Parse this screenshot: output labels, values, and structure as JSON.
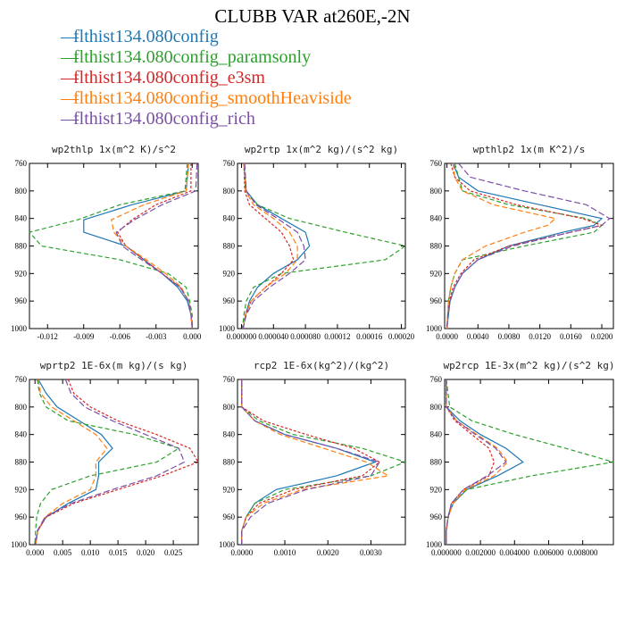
{
  "figure_title": "CLUBB VAR at260E,-2N",
  "legend": [
    {
      "label": "flthist134.080config",
      "color": "#1f77b4"
    },
    {
      "label": "flthist134.080config_paramsonly",
      "color": "#2ca02c"
    },
    {
      "label": "flthist134.080config_e3sm",
      "color": "#d62728"
    },
    {
      "label": "flthist134.080config_smoothHeaviside",
      "color": "#ff7f0e"
    },
    {
      "label": "flthist134.080config_rich",
      "color": "#7b4fa6"
    }
  ],
  "chart_data": [
    {
      "type": "line",
      "title": "wp2thlp  1x(m^2 K)/s^2",
      "xlim": [
        -0.0135,
        0.0005
      ],
      "ylim": [
        760,
        1000
      ],
      "y_inverted": true,
      "xticks": [
        "-0.012",
        "-0.009",
        "-0.006",
        "-0.003",
        "0.000"
      ],
      "xtick_values": [
        -0.012,
        -0.009,
        -0.006,
        -0.003,
        0.0
      ],
      "yticks": [
        "760",
        "800",
        "840",
        "880",
        "920",
        "960",
        "1000"
      ],
      "y": [
        760,
        800,
        820,
        842,
        860,
        880,
        900,
        920,
        940,
        960,
        980,
        1000
      ],
      "series": [
        {
          "color": "#1f77b4",
          "x": [
            -0.0003,
            -0.0005,
            -0.005,
            -0.009,
            -0.009,
            -0.0055,
            -0.004,
            -0.0025,
            -0.0012,
            -0.0004,
            -0.0001,
            0.0
          ]
        },
        {
          "color": "#2ca02c",
          "x": [
            -0.0004,
            -0.0006,
            -0.006,
            -0.0095,
            -0.0135,
            -0.0125,
            -0.006,
            -0.002,
            -0.0005,
            -0.0002,
            0.0,
            0.0
          ]
        },
        {
          "color": "#d62728",
          "x": [
            -0.0001,
            -0.0001,
            -0.003,
            -0.005,
            -0.0062,
            -0.0055,
            -0.004,
            -0.0025,
            -0.001,
            -0.0003,
            -0.0001,
            0.0
          ]
        },
        {
          "color": "#ff7f0e",
          "x": [
            -0.0003,
            -0.0005,
            -0.004,
            -0.0067,
            -0.0065,
            -0.0055,
            -0.0038,
            -0.0022,
            -0.0009,
            -0.0003,
            -0.0001,
            0.0
          ]
        },
        {
          "color": "#7b4fa6",
          "x": [
            0.0004,
            0.0003,
            -0.0025,
            -0.0048,
            -0.0063,
            -0.0058,
            -0.0042,
            -0.0025,
            -0.001,
            -0.0003,
            -0.0001,
            0.0
          ]
        }
      ]
    },
    {
      "type": "line",
      "title": "wp2rtp  1x(m^2 kg)/(s^2 kg)",
      "xlim": [
        -5e-06,
        0.000205
      ],
      "ylim": [
        760,
        1000
      ],
      "y_inverted": true,
      "xticks": [
        "0.000000",
        "0.000040",
        "0.000080",
        "0.00012",
        "0.00016",
        "0.00020"
      ],
      "xtick_values": [
        0.0,
        4e-05,
        8e-05,
        0.00012,
        0.00016,
        0.0002
      ],
      "yticks": [
        "760",
        "800",
        "840",
        "880",
        "920",
        "960",
        "1000"
      ],
      "y": [
        760,
        800,
        820,
        840,
        860,
        880,
        900,
        920,
        940,
        960,
        980,
        1000
      ],
      "series": [
        {
          "color": "#1f77b4",
          "x": [
            3e-06,
            6e-06,
            2e-05,
            5e-05,
            8e-05,
            8.5e-05,
            7e-05,
            4e-05,
            2e-05,
            1e-05,
            5e-06,
            2e-06
          ]
        },
        {
          "color": "#2ca02c",
          "x": [
            3e-06,
            5e-06,
            2e-05,
            6e-05,
            0.00013,
            0.000205,
            0.00018,
            5e-05,
            1.5e-05,
            6e-06,
            3e-06,
            1e-06
          ]
        },
        {
          "color": "#d62728",
          "x": [
            3e-06,
            4e-06,
            1e-05,
            3e-05,
            5e-05,
            6e-05,
            6.5e-05,
            5e-05,
            3e-05,
            1.2e-05,
            5e-06,
            2e-06
          ]
        },
        {
          "color": "#ff7f0e",
          "x": [
            3e-06,
            5e-06,
            1.5e-05,
            4e-05,
            6e-05,
            7e-05,
            7e-05,
            5.5e-05,
            3e-05,
            1.2e-05,
            5e-06,
            2e-06
          ]
        },
        {
          "color": "#7b4fa6",
          "x": [
            4e-06,
            6e-06,
            1.8e-05,
            4.5e-05,
            7e-05,
            7.8e-05,
            8e-05,
            6e-05,
            3.5e-05,
            1.5e-05,
            6e-06,
            2e-06
          ]
        }
      ]
    },
    {
      "type": "line",
      "title": "wpthlp2  1x(m K^2)/s",
      "xlim": [
        -0.0003,
        0.0215
      ],
      "ylim": [
        760,
        1000
      ],
      "y_inverted": true,
      "xticks": [
        "0.0000",
        "0.0040",
        "0.0080",
        "0.0120",
        "0.0160",
        "0.0200"
      ],
      "xtick_values": [
        0.0,
        0.004,
        0.008,
        0.012,
        0.016,
        0.02
      ],
      "yticks": [
        "760",
        "800",
        "840",
        "880",
        "920",
        "960",
        "1000"
      ],
      "y": [
        760,
        780,
        800,
        820,
        840,
        850,
        860,
        880,
        900,
        920,
        940,
        960,
        980,
        1000
      ],
      "series": [
        {
          "color": "#1f77b4",
          "x": [
            0.0008,
            0.0015,
            0.004,
            0.012,
            0.02,
            0.019,
            0.015,
            0.008,
            0.004,
            0.002,
            0.001,
            0.0004,
            0.0002,
            0.0
          ]
        },
        {
          "color": "#2ca02c",
          "x": [
            0.001,
            0.0015,
            0.002,
            0.008,
            0.018,
            0.02,
            0.019,
            0.01,
            0.002,
            0.001,
            0.0005,
            0.0002,
            0.0001,
            0.0
          ]
        },
        {
          "color": "#d62728",
          "x": [
            0.0005,
            0.001,
            0.003,
            0.009,
            0.0175,
            0.02,
            0.016,
            0.008,
            0.0035,
            0.0018,
            0.0008,
            0.0003,
            0.0001,
            0.0
          ]
        },
        {
          "color": "#ff7f0e",
          "x": [
            0.0008,
            0.001,
            0.002,
            0.006,
            0.014,
            0.013,
            0.01,
            0.005,
            0.002,
            0.001,
            0.0005,
            0.0002,
            0.0001,
            0.0
          ]
        },
        {
          "color": "#7b4fa6",
          "x": [
            0.0015,
            0.003,
            0.01,
            0.018,
            0.021,
            0.02,
            0.016,
            0.0085,
            0.004,
            0.002,
            0.001,
            0.0004,
            0.0001,
            0.0
          ]
        }
      ]
    },
    {
      "type": "line",
      "title": "wprtp2  1E-6x(m kg)/(s kg)",
      "xlim": [
        -0.001,
        0.0295
      ],
      "ylim": [
        760,
        1000
      ],
      "y_inverted": true,
      "xticks": [
        "0.000",
        "0.005",
        "0.010",
        "0.015",
        "0.020",
        "0.025"
      ],
      "xtick_values": [
        0.0,
        0.005,
        0.01,
        0.015,
        0.02,
        0.025
      ],
      "yticks": [
        "760",
        "800",
        "840",
        "880",
        "920",
        "960",
        "1000"
      ],
      "y": [
        760,
        780,
        800,
        820,
        840,
        860,
        880,
        900,
        920,
        940,
        960,
        980,
        1000
      ],
      "series": [
        {
          "color": "#1f77b4",
          "x": [
            0.0006,
            0.002,
            0.004,
            0.008,
            0.012,
            0.014,
            0.0115,
            0.0115,
            0.011,
            0.006,
            0.002,
            0.0005,
            0.0001
          ]
        },
        {
          "color": "#2ca02c",
          "x": [
            0.0004,
            0.0008,
            0.002,
            0.006,
            0.018,
            0.026,
            0.022,
            0.01,
            0.003,
            0.001,
            0.0003,
            0.0001,
            0.0
          ]
        },
        {
          "color": "#d62728",
          "x": [
            0.006,
            0.007,
            0.01,
            0.015,
            0.022,
            0.028,
            0.0295,
            0.023,
            0.015,
            0.007,
            0.002,
            0.0005,
            0.0001
          ]
        },
        {
          "color": "#ff7f0e",
          "x": [
            0.0006,
            0.001,
            0.003,
            0.007,
            0.011,
            0.013,
            0.011,
            0.011,
            0.01,
            0.005,
            0.0018,
            0.0005,
            0.0001
          ]
        },
        {
          "color": "#7b4fa6",
          "x": [
            0.0055,
            0.0065,
            0.009,
            0.014,
            0.02,
            0.026,
            0.027,
            0.022,
            0.014,
            0.0065,
            0.0018,
            0.0004,
            0.0001
          ]
        }
      ]
    },
    {
      "type": "line",
      "title": "rcp2  1E-6x(kg^2)/(kg^2)",
      "xlim": [
        -0.0001,
        0.0038
      ],
      "ylim": [
        760,
        1000
      ],
      "y_inverted": true,
      "xticks": [
        "0.0000",
        "0.0010",
        "0.0020",
        "0.0030"
      ],
      "xtick_values": [
        0.0,
        0.001,
        0.002,
        0.003
      ],
      "yticks": [
        "760",
        "800",
        "840",
        "880",
        "920",
        "960",
        "1000"
      ],
      "y": [
        760,
        800,
        820,
        840,
        860,
        880,
        900,
        920,
        940,
        960,
        980,
        1000
      ],
      "series": [
        {
          "color": "#1f77b4",
          "x": [
            0.0,
            0.0,
            0.0003,
            0.001,
            0.0022,
            0.0031,
            0.0022,
            0.0008,
            0.0003,
            0.0001,
            0.0,
            0.0
          ]
        },
        {
          "color": "#2ca02c",
          "x": [
            0.0,
            0.0,
            0.0004,
            0.0012,
            0.0028,
            0.0038,
            0.003,
            0.001,
            0.0003,
            0.0001,
            0.0,
            0.0
          ]
        },
        {
          "color": "#d62728",
          "x": [
            0.0,
            0.0,
            0.0005,
            0.0015,
            0.0026,
            0.0032,
            0.0028,
            0.0012,
            0.0004,
            0.0001,
            0.0,
            0.0
          ]
        },
        {
          "color": "#ff7f0e",
          "x": [
            0.0,
            0.0,
            0.0003,
            0.0009,
            0.0019,
            0.0029,
            0.0034,
            0.0014,
            0.0005,
            0.0001,
            0.0,
            0.0
          ]
        },
        {
          "color": "#7b4fa6",
          "x": [
            0.0,
            0.0,
            0.0003,
            0.001,
            0.0022,
            0.0032,
            0.003,
            0.0015,
            0.0006,
            0.0002,
            0.0,
            0.0
          ]
        }
      ]
    },
    {
      "type": "line",
      "title": "wp2rcp  1E-3x(m^2 kg)/(s^2 kg)",
      "xlim": [
        -0.0001,
        0.0098
      ],
      "ylim": [
        760,
        1000
      ],
      "y_inverted": true,
      "xticks": [
        "0.000000",
        "0.002000",
        "0.004000",
        "0.006000",
        "0.008000"
      ],
      "xtick_values": [
        0.0,
        0.002,
        0.004,
        0.006,
        0.008
      ],
      "yticks": [
        "760",
        "800",
        "840",
        "880",
        "920",
        "960",
        "1000"
      ],
      "y": [
        760,
        800,
        820,
        840,
        860,
        880,
        900,
        920,
        940,
        960,
        980,
        1000
      ],
      "series": [
        {
          "color": "#1f77b4",
          "x": [
            0.0,
            0.0,
            0.0008,
            0.002,
            0.0035,
            0.0045,
            0.003,
            0.0012,
            0.0004,
            0.0001,
            0.0,
            0.0
          ]
        },
        {
          "color": "#2ca02c",
          "x": [
            0.0,
            0.0002,
            0.0015,
            0.004,
            0.007,
            0.0098,
            0.005,
            0.0012,
            0.0003,
            0.0001,
            0.0,
            0.0
          ]
        },
        {
          "color": "#d62728",
          "x": [
            0.0,
            0.0,
            0.0005,
            0.0015,
            0.0025,
            0.0028,
            0.0025,
            0.001,
            0.0003,
            0.0001,
            0.0,
            0.0
          ]
        },
        {
          "color": "#ff7f0e",
          "x": [
            0.0,
            0.0,
            0.0006,
            0.0018,
            0.003,
            0.0036,
            0.0028,
            0.0011,
            0.0004,
            0.0001,
            0.0,
            0.0
          ]
        },
        {
          "color": "#7b4fa6",
          "x": [
            0.0,
            0.0,
            0.0006,
            0.0017,
            0.0029,
            0.0035,
            0.0024,
            0.001,
            0.0003,
            0.0001,
            0.0,
            0.0
          ]
        }
      ]
    }
  ]
}
